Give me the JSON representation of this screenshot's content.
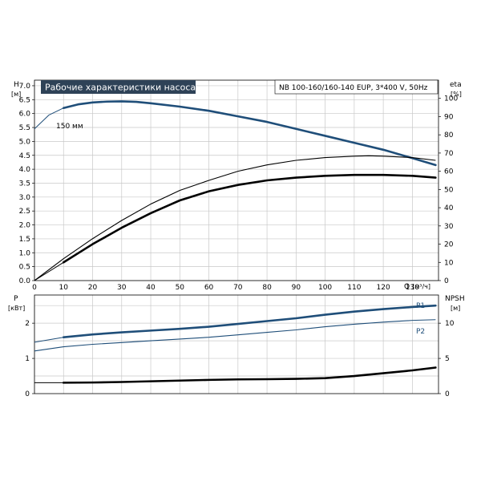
{
  "chart_data": [
    {
      "type": "line",
      "panel": "head-efficiency",
      "title": "Рабочие характеристики насоса",
      "subtitle": "NB 100-160/160-140 EUP, 3*400 V, 50Hz",
      "xlabel": "Q [м³/ч]",
      "xlabel_q": "Q",
      "xlabel_unit": "[м³/ч]",
      "xlim": [
        0,
        139
      ],
      "x_ticks": [
        "0",
        "10",
        "20",
        "30",
        "40",
        "50",
        "60",
        "70",
        "80",
        "90",
        "100",
        "110",
        "120",
        "130"
      ],
      "ylabel_left": "H",
      "ylabel_left_unit": "[м]",
      "ylim_left": [
        0,
        7.2
      ],
      "y_left_ticks": [
        "0.0",
        "0.5",
        "1.0",
        "1.5",
        "2.0",
        "2.5",
        "3.0",
        "3.5",
        "4.0",
        "4.5",
        "5.0",
        "5.5",
        "6.0",
        "6.5",
        "7.0"
      ],
      "ylabel_right": "eta",
      "ylabel_right_unit": "[%]",
      "ylim_right": [
        0,
        110
      ],
      "y_right_ticks": [
        "0",
        "10",
        "20",
        "30",
        "40",
        "50",
        "60",
        "70",
        "80",
        "90",
        "100"
      ],
      "grid": true,
      "series": [
        {
          "name": "150 мм",
          "axis": "left",
          "color": "#1f4e79",
          "style": "thin-then-thick",
          "thin_until": 10,
          "x": [
            0,
            5,
            10,
            15,
            20,
            25,
            30,
            35,
            40,
            50,
            60,
            70,
            80,
            90,
            100,
            110,
            120,
            130,
            138
          ],
          "y": [
            5.45,
            5.95,
            6.2,
            6.33,
            6.4,
            6.43,
            6.44,
            6.42,
            6.37,
            6.25,
            6.1,
            5.9,
            5.7,
            5.45,
            5.2,
            4.95,
            4.7,
            4.4,
            4.15
          ]
        },
        {
          "name": "",
          "axis": "right",
          "color": "#000000",
          "style": "thin",
          "x": [
            0,
            10,
            20,
            30,
            40,
            50,
            60,
            70,
            80,
            90,
            100,
            110,
            115,
            120,
            130,
            138
          ],
          "y": [
            0,
            12,
            23,
            33,
            42,
            49.5,
            55,
            60,
            63.5,
            66,
            67.5,
            68.3,
            68.5,
            68.3,
            67.5,
            66
          ]
        },
        {
          "name": "",
          "axis": "right",
          "color": "#000000",
          "style": "thin-then-thick",
          "thin_until": 10,
          "x": [
            0,
            10,
            20,
            30,
            40,
            50,
            60,
            70,
            80,
            90,
            100,
            110,
            120,
            130,
            138
          ],
          "y": [
            0,
            10,
            20,
            29,
            37,
            44,
            49,
            52.5,
            55,
            56.5,
            57.5,
            58,
            58,
            57.5,
            56.5
          ]
        }
      ]
    },
    {
      "type": "line",
      "panel": "power-npsh",
      "xlim": [
        0,
        139
      ],
      "ylabel_left": "P",
      "ylabel_left_unit": "[кВт]",
      "ylim_left": [
        0,
        2.8
      ],
      "y_left_ticks": [
        "0",
        "1",
        "2"
      ],
      "ylabel_right": "NPSH",
      "ylabel_right_unit": "[м]",
      "ylim_right": [
        0,
        14
      ],
      "y_right_ticks": [
        "0",
        "5",
        "10"
      ],
      "grid": true,
      "series": [
        {
          "name": "P1",
          "axis": "left",
          "color": "#1f4e79",
          "style": "thin-then-thick",
          "thin_until": 10,
          "x": [
            0,
            10,
            20,
            30,
            40,
            50,
            60,
            70,
            80,
            90,
            100,
            110,
            120,
            130,
            138
          ],
          "y": [
            1.46,
            1.6,
            1.68,
            1.74,
            1.79,
            1.84,
            1.9,
            1.98,
            2.06,
            2.14,
            2.24,
            2.33,
            2.4,
            2.46,
            2.5
          ]
        },
        {
          "name": "P2",
          "axis": "left",
          "color": "#1f4e79",
          "style": "thin",
          "x": [
            0,
            10,
            20,
            30,
            40,
            50,
            60,
            70,
            80,
            90,
            100,
            110,
            120,
            130,
            138
          ],
          "y": [
            1.21,
            1.33,
            1.4,
            1.45,
            1.5,
            1.55,
            1.6,
            1.67,
            1.74,
            1.81,
            1.9,
            1.97,
            2.03,
            2.08,
            2.1
          ]
        },
        {
          "name": "",
          "axis": "right",
          "color": "#000000",
          "style": "thin-then-thick",
          "thin_until": 10,
          "x": [
            0,
            10,
            20,
            30,
            40,
            50,
            60,
            70,
            80,
            90,
            100,
            110,
            120,
            130,
            138
          ],
          "y": [
            1.55,
            1.55,
            1.58,
            1.65,
            1.75,
            1.85,
            1.95,
            2.02,
            2.05,
            2.1,
            2.2,
            2.5,
            2.9,
            3.3,
            3.7
          ]
        }
      ]
    }
  ]
}
